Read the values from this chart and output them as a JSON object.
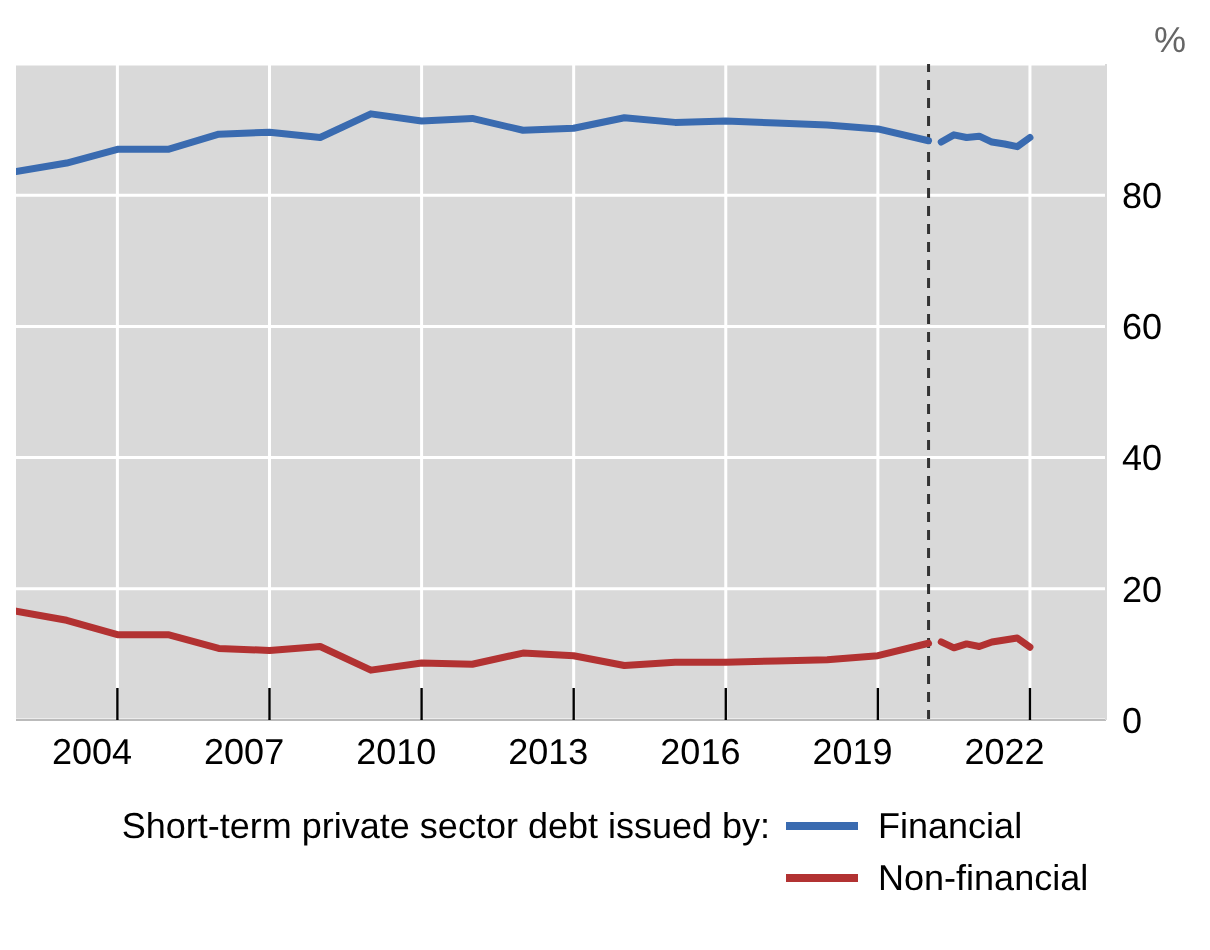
{
  "chart_data": {
    "type": "line",
    "ylabel": "%",
    "legend_title": "Short-term private sector debt issued by:",
    "legend": "bottom",
    "grid": true,
    "x": [
      2003,
      2004,
      2005,
      2006,
      2007,
      2008,
      2009,
      2010,
      2011,
      2012,
      2013,
      2014,
      2015,
      2016,
      2017,
      2018,
      2019,
      2020,
      2021,
      2021.1,
      2021.25,
      2021.5,
      2021.75,
      2022,
      2022.25,
      2022.5,
      2022.75,
      2023
    ],
    "series": [
      {
        "name": "Financial",
        "color": "#3a6bb0",
        "values": [
          83.6,
          84.9,
          87.0,
          87.0,
          89.3,
          89.6,
          88.8,
          92.4,
          91.3,
          91.7,
          89.9,
          90.2,
          91.8,
          91.1,
          91.3,
          91.0,
          90.7,
          90.1,
          88.3,
          null,
          88.1,
          89.2,
          88.8,
          89.0,
          88.1,
          87.8,
          87.4,
          88.8
        ]
      },
      {
        "name": "Non-financial",
        "color": "#b23232",
        "values": [
          16.6,
          15.2,
          13.0,
          13.0,
          10.9,
          10.6,
          11.2,
          7.6,
          8.7,
          8.5,
          10.2,
          9.8,
          8.3,
          8.8,
          8.8,
          9.0,
          9.2,
          9.8,
          11.7,
          null,
          11.9,
          11.0,
          11.6,
          11.2,
          11.9,
          12.2,
          12.5,
          11.1
        ]
      }
    ],
    "xlim": [
      2003,
      2024.5
    ],
    "xticks": [
      {
        "value": 2004.5,
        "label": "2004"
      },
      {
        "value": 2007.5,
        "label": "2007"
      },
      {
        "value": 2010.5,
        "label": "2010"
      },
      {
        "value": 2013.5,
        "label": "2013"
      },
      {
        "value": 2016.5,
        "label": "2016"
      },
      {
        "value": 2019.5,
        "label": "2019"
      },
      {
        "value": 2022.5,
        "label": "2022"
      },
      {
        "value": 2005,
        "label": null
      },
      {
        "value": 2008,
        "label": null
      },
      {
        "value": 2011,
        "label": null
      },
      {
        "value": 2014,
        "label": null
      },
      {
        "value": 2017,
        "label": null
      },
      {
        "value": 2020,
        "label": null
      },
      {
        "value": 2023,
        "label": null
      }
    ],
    "ylim": [
      0,
      100
    ],
    "yticks": [
      0,
      20,
      40,
      60,
      80
    ],
    "ref_lines": [
      {
        "axis": "x",
        "value": 2021,
        "line_style": "dashed",
        "color": "#333333"
      }
    ],
    "line_style": "solid",
    "marker": "none"
  }
}
